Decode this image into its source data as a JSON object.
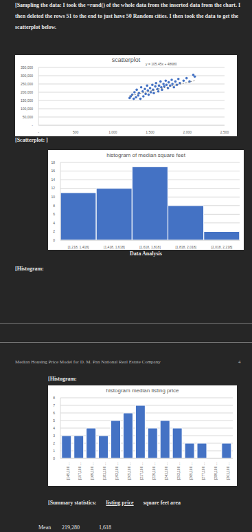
{
  "document": {
    "intro": "[Sampling the data: I took the =rand() of the whole data from the inserted data from the chart. I then deleted the rows 51 to the end to just have 50 Random cities. I then took the data to get the scatterplot below.",
    "scatter_caption": "[Scatterplot: ]",
    "section_label": "Data Analysis",
    "histogram_caption": "[Histogram:",
    "page_header": "Median Housing Price Model for D. M. Pan National Real Estate Company",
    "page_number": "4",
    "histogram_caption_2": "[Histogram:",
    "summary": {
      "header": [
        "[Summary statistics:",
        "listing price",
        "square feet area"
      ],
      "rows": [
        [
          "Mean",
          "219,280",
          "1,618"
        ]
      ]
    }
  },
  "chart_data": [
    {
      "type": "scatter",
      "title": "scatterplot",
      "annotation": "y = 105.45x + 48680",
      "color": "#4472c4",
      "x": [
        1225,
        1240,
        1260,
        1280,
        1290,
        1310,
        1320,
        1340,
        1350,
        1370,
        1380,
        1400,
        1410,
        1430,
        1440,
        1460,
        1470,
        1480,
        1500,
        1510,
        1530,
        1540,
        1550,
        1570,
        1580,
        1600,
        1610,
        1620,
        1640,
        1650,
        1660,
        1680,
        1690,
        1710,
        1720,
        1740,
        1750,
        1770,
        1790,
        1800,
        1820,
        1840,
        1860,
        1880,
        1900,
        1950,
        1990,
        2030,
        2080,
        2100
      ],
      "values": [
        165000,
        175000,
        185000,
        160000,
        200000,
        170000,
        215000,
        180000,
        195000,
        160000,
        230000,
        205000,
        175000,
        220000,
        190000,
        240000,
        210000,
        185000,
        225000,
        200000,
        245000,
        215000,
        195000,
        235000,
        255000,
        220000,
        205000,
        240000,
        265000,
        230000,
        215000,
        250000,
        235000,
        270000,
        245000,
        225000,
        260000,
        240000,
        275000,
        250000,
        230000,
        265000,
        245000,
        280000,
        255000,
        270000,
        285000,
        265000,
        305000,
        295000
      ],
      "trendline": {
        "x": [
          1218,
          2100
        ],
        "values": [
          177118,
          270125
        ],
        "line_style": "dotted"
      },
      "xlim": [
        0,
        2500
      ],
      "ylim": [
        0,
        350000
      ],
      "xticks": [
        {
          "value": 0,
          "label": "-"
        },
        500,
        {
          "value": 1000,
          "label": "1,000"
        },
        {
          "value": 1500,
          "label": "1,500"
        },
        {
          "value": 2000,
          "label": "2,000"
        },
        {
          "value": 2500,
          "label": "2,500"
        }
      ],
      "yticks": [
        {
          "value": 0,
          "label": "-"
        },
        {
          "value": 50000,
          "label": "50,000"
        },
        {
          "value": 100000,
          "label": "100,000"
        },
        {
          "value": 150000,
          "label": "150,000"
        },
        {
          "value": 200000,
          "label": "200,000"
        },
        {
          "value": 250000,
          "label": "250,000"
        },
        {
          "value": 300000,
          "label": "300,000"
        },
        {
          "value": 350000,
          "label": "350,000"
        }
      ],
      "grid": true
    },
    {
      "type": "histogram",
      "title": "histogram of median square feet",
      "categories": [
        "[1,218, 1,418]",
        "[1,418, 1,618]",
        "[1,618, 1,818]",
        "[1,818, 2,018]",
        "[2,018, 2,218]"
      ],
      "values": [
        11,
        12,
        17,
        8,
        2
      ],
      "color": "#4472c4",
      "ylim": [
        0,
        18
      ],
      "yticks": [
        0,
        2,
        4,
        6,
        8,
        10,
        12,
        14,
        16,
        18
      ],
      "grid": true
    },
    {
      "type": "bar",
      "title": "histogram median listing price",
      "categories": [
        "[145,100 ...",
        "[157,100 ...",
        "[169,100 ...",
        "[181,100 ...",
        "[193,100 ...",
        "[205,100 ...",
        "[217,100 ...",
        "[229,100 ...",
        "[241,100 ...",
        "[253,100 ...",
        "[265,100 ...",
        "[277,100 ...",
        "[289,100 ...",
        "[301,100 ..."
      ],
      "values": [
        3,
        3,
        4,
        3,
        5,
        6,
        7,
        4,
        5,
        4,
        2,
        2,
        0,
        2
      ],
      "color": "#4472c4",
      "ylim": [
        0,
        8
      ],
      "yticks": [
        0,
        1,
        2,
        3,
        4,
        5,
        6,
        7,
        8
      ],
      "grid": true
    }
  ]
}
